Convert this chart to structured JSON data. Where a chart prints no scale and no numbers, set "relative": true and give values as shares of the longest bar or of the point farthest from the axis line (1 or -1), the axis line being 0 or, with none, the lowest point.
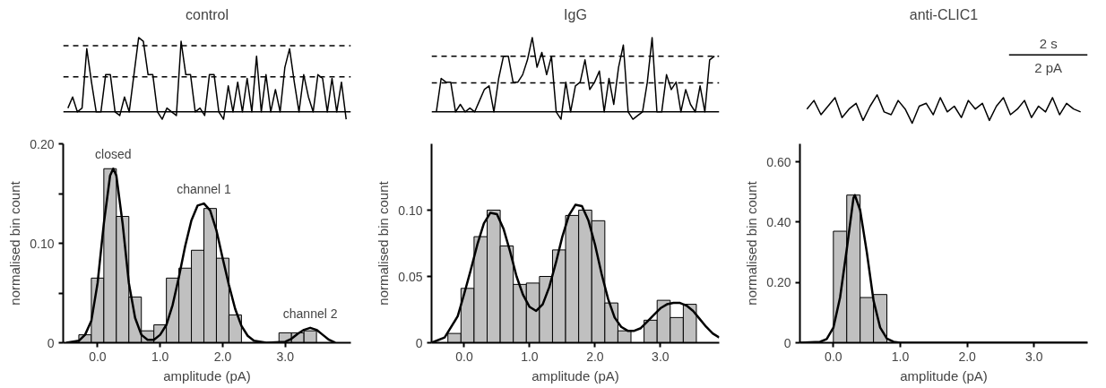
{
  "chart_data": [
    {
      "type": "line",
      "title": "control",
      "relative": true,
      "color": "#000000",
      "categories": [
        null,
        null,
        null,
        null,
        null,
        null,
        null,
        null,
        null,
        null,
        null,
        null,
        null,
        null,
        null,
        null,
        null,
        null,
        null,
        null,
        null,
        null,
        null,
        null,
        null,
        null,
        null,
        null,
        null,
        null,
        null,
        null,
        null,
        null,
        null,
        null,
        null,
        null,
        null,
        null,
        null,
        null,
        null,
        null,
        null,
        null,
        null,
        null,
        null,
        null,
        null,
        null,
        null,
        null,
        null,
        null,
        null,
        null,
        null,
        null
      ],
      "values": [
        0.05,
        0.2,
        0.0,
        0.05,
        0.85,
        0.4,
        0.0,
        0.0,
        0.5,
        0.5,
        0.0,
        -0.05,
        0.2,
        0.0,
        0.5,
        1.0,
        0.95,
        0.5,
        0.5,
        0.0,
        -0.1,
        0.05,
        0.0,
        -0.05,
        0.95,
        0.5,
        0.5,
        0.0,
        0.05,
        -0.05,
        0.5,
        0.5,
        0.0,
        -0.1,
        0.35,
        0.0,
        0.4,
        0.0,
        0.45,
        0.0,
        0.75,
        0.0,
        0.5,
        0.0,
        0.3,
        0.0,
        0.6,
        0.85,
        0.4,
        0.0,
        0.5,
        0.2,
        0.0,
        0.5,
        0.45,
        0.0,
        0.45,
        0.0,
        0.4,
        -0.1
      ],
      "ref_lines": [
        {
          "axis": "y",
          "value": 0,
          "line_style": "solid"
        },
        {
          "axis": "y",
          "value": 0.47,
          "line_style": "dashed"
        },
        {
          "axis": "y",
          "value": 0.89,
          "line_style": "dashed"
        }
      ]
    },
    {
      "type": "line",
      "title": "IgG",
      "relative": true,
      "color": "#000000",
      "categories": [
        null,
        null,
        null,
        null,
        null,
        null,
        null,
        null,
        null,
        null,
        null,
        null,
        null,
        null,
        null,
        null,
        null,
        null,
        null,
        null,
        null,
        null,
        null,
        null,
        null,
        null,
        null,
        null,
        null,
        null,
        null,
        null,
        null,
        null,
        null,
        null,
        null,
        null,
        null,
        null,
        null,
        null,
        null,
        null,
        null,
        null,
        null,
        null,
        null,
        null,
        null,
        null,
        null,
        null,
        null,
        null,
        null,
        null,
        null
      ],
      "values": [
        0.0,
        0.45,
        0.4,
        0.4,
        0.0,
        0.1,
        0.0,
        0.05,
        0.0,
        0.15,
        0.3,
        0.35,
        0.0,
        0.45,
        0.75,
        0.75,
        0.4,
        0.4,
        0.5,
        0.7,
        1.0,
        0.6,
        0.8,
        0.5,
        0.75,
        0.0,
        -0.1,
        0.4,
        0.0,
        0.35,
        0.4,
        0.7,
        0.3,
        0.4,
        0.55,
        0.0,
        0.45,
        0.1,
        0.6,
        0.9,
        0.0,
        -0.1,
        -0.05,
        0.0,
        0.4,
        1.0,
        0.0,
        0.0,
        0.5,
        0.3,
        0.4,
        0.0,
        0.3,
        0.1,
        0.0,
        0.35,
        0.0,
        0.7,
        0.75
      ],
      "ref_lines": [
        {
          "axis": "y",
          "value": 0,
          "line_style": "solid"
        },
        {
          "axis": "y",
          "value": 0.39,
          "line_style": "dashed"
        },
        {
          "axis": "y",
          "value": 0.75,
          "line_style": "dashed"
        }
      ]
    },
    {
      "type": "line",
      "title": "anti-CLIC1",
      "relative": true,
      "color": "#000000",
      "categories": [
        null,
        null,
        null,
        null,
        null,
        null,
        null,
        null,
        null,
        null,
        null,
        null,
        null,
        null,
        null,
        null,
        null,
        null,
        null,
        null,
        null,
        null,
        null,
        null,
        null,
        null,
        null,
        null,
        null,
        null,
        null,
        null,
        null,
        null,
        null,
        null,
        null,
        null,
        null,
        null
      ],
      "values": [
        0.5,
        0.8,
        0.3,
        0.6,
        0.9,
        0.2,
        0.5,
        0.7,
        0.1,
        0.6,
        1.0,
        0.4,
        0.3,
        0.8,
        0.5,
        0.0,
        0.6,
        0.7,
        0.3,
        0.9,
        0.4,
        0.6,
        0.2,
        0.8,
        0.5,
        0.7,
        0.1,
        0.6,
        0.9,
        0.3,
        0.5,
        0.8,
        0.2,
        0.6,
        0.4,
        0.9,
        0.3,
        0.7,
        0.5,
        0.4
      ],
      "annotations": [
        "2 s",
        "2 pA"
      ]
    },
    {
      "type": "histogram",
      "xlabel": "amplitude (pA)",
      "ylabel": "normalised bin count",
      "xlim": [
        -0.55,
        4.05
      ],
      "ylim": [
        0,
        0.2
      ],
      "xticks": [
        {
          "value": 0,
          "label": "0.0"
        },
        {
          "value": 1,
          "label": "1.0"
        },
        {
          "value": 2,
          "label": "2.0"
        },
        {
          "value": 3,
          "label": "3.0"
        }
      ],
      "yticks": [
        0,
        {
          "value": 0.05,
          "label": null
        },
        {
          "value": 0.1,
          "label": "0.10"
        },
        {
          "value": 0.15,
          "label": null
        },
        {
          "value": 0.2,
          "label": "0.20"
        }
      ],
      "series": [
        {
          "type": "histogram",
          "color": "#c0c0c0",
          "bins": [
            -0.3,
            -0.1,
            0.1,
            0.3,
            0.5,
            0.7,
            0.9,
            1.1,
            1.3,
            1.5,
            1.7,
            1.9,
            2.1,
            2.3,
            2.5,
            2.7,
            2.9,
            3.1,
            3.3,
            3.5
          ],
          "values": [
            0.008,
            0.065,
            0.175,
            0.127,
            0.046,
            0.012,
            0.018,
            0.065,
            0.075,
            0.093,
            0.135,
            0.085,
            0.028,
            0,
            0,
            0,
            0.01,
            0.01,
            0.012
          ]
        },
        {
          "type": "line",
          "color": "#000000",
          "x": [
            -0.5,
            -0.3,
            -0.2,
            -0.1,
            0.0,
            0.1,
            0.2,
            0.25,
            0.3,
            0.4,
            0.5,
            0.6,
            0.7,
            0.8,
            0.9,
            1.0,
            1.1,
            1.2,
            1.3,
            1.4,
            1.5,
            1.6,
            1.7,
            1.8,
            1.9,
            2.0,
            2.1,
            2.2,
            2.3,
            2.4,
            2.5,
            2.7,
            3.0,
            3.1,
            3.2,
            3.3,
            3.4,
            3.5,
            3.6,
            3.7,
            3.8
          ],
          "values": [
            0.0,
            0.002,
            0.008,
            0.022,
            0.06,
            0.12,
            0.168,
            0.175,
            0.168,
            0.12,
            0.06,
            0.025,
            0.008,
            0.003,
            0.003,
            0.008,
            0.018,
            0.038,
            0.066,
            0.097,
            0.123,
            0.138,
            0.14,
            0.133,
            0.113,
            0.085,
            0.058,
            0.034,
            0.017,
            0.007,
            0.002,
            0.0,
            0.001,
            0.004,
            0.009,
            0.013,
            0.015,
            0.013,
            0.008,
            0.003,
            0.0
          ]
        }
      ],
      "annotations": [
        {
          "text": "closed",
          "x": 0.25,
          "y": 0.175
        },
        {
          "text": "channel 1",
          "x": 1.7,
          "y": 0.14
        },
        {
          "text": "channel 2",
          "x": 3.4,
          "y": 0.015
        }
      ]
    },
    {
      "type": "histogram",
      "xlabel": "amplitude (pA)",
      "ylabel": "normalised bin count",
      "xlim": [
        -0.5,
        3.9
      ],
      "ylim": [
        0,
        0.15
      ],
      "xticks": [
        {
          "value": 0,
          "label": "0.0"
        },
        {
          "value": 1,
          "label": "1.0"
        },
        {
          "value": 2,
          "label": "2.0"
        },
        {
          "value": 3,
          "label": "3.0"
        }
      ],
      "yticks": [
        0,
        {
          "value": 0.05,
          "label": "0.05"
        },
        {
          "value": 0.1,
          "label": "0.10"
        }
      ],
      "series": [
        {
          "type": "histogram",
          "color": "#c0c0c0",
          "bins": [
            -0.25,
            -0.05,
            0.15,
            0.35,
            0.55,
            0.75,
            0.95,
            1.15,
            1.35,
            1.55,
            1.75,
            1.95,
            2.15,
            2.35,
            2.55,
            2.75,
            2.95,
            3.15,
            3.35,
            3.55
          ],
          "values": [
            0.007,
            0.041,
            0.08,
            0.1,
            0.073,
            0.044,
            0.045,
            0.05,
            0.07,
            0.096,
            0.1,
            0.092,
            0.03,
            0.009,
            0,
            0.017,
            0.032,
            0.019,
            0.029
          ]
        },
        {
          "type": "line",
          "color": "#000000",
          "x": [
            -0.5,
            -0.3,
            -0.1,
            0.0,
            0.1,
            0.2,
            0.3,
            0.4,
            0.5,
            0.6,
            0.7,
            0.8,
            0.9,
            1.0,
            1.1,
            1.2,
            1.3,
            1.4,
            1.5,
            1.6,
            1.7,
            1.8,
            1.9,
            2.0,
            2.1,
            2.2,
            2.3,
            2.4,
            2.5,
            2.6,
            2.7,
            2.8,
            2.9,
            3.0,
            3.1,
            3.2,
            3.3,
            3.4,
            3.5,
            3.6,
            3.7,
            3.8,
            3.9
          ],
          "values": [
            0.0,
            0.004,
            0.02,
            0.037,
            0.055,
            0.074,
            0.09,
            0.098,
            0.097,
            0.086,
            0.069,
            0.05,
            0.036,
            0.027,
            0.024,
            0.029,
            0.042,
            0.06,
            0.08,
            0.096,
            0.104,
            0.103,
            0.092,
            0.074,
            0.052,
            0.033,
            0.019,
            0.012,
            0.009,
            0.009,
            0.011,
            0.016,
            0.021,
            0.026,
            0.029,
            0.03,
            0.03,
            0.028,
            0.024,
            0.018,
            0.012,
            0.007,
            0.004
          ]
        }
      ]
    },
    {
      "type": "histogram",
      "xlabel": "amplitude (pA)",
      "ylabel": "normalised bin count",
      "xlim": [
        -0.5,
        3.8
      ],
      "ylim": [
        0,
        0.66
      ],
      "xticks": [
        {
          "value": 0,
          "label": "0.0"
        },
        {
          "value": 1,
          "label": "1.0"
        },
        {
          "value": 2,
          "label": "2.0"
        },
        {
          "value": 3,
          "label": "3.0"
        }
      ],
      "yticks": [
        0,
        {
          "value": 0.2,
          "label": "0.20"
        },
        {
          "value": 0.4,
          "label": "0.40"
        },
        {
          "value": 0.6,
          "label": "0.60"
        }
      ],
      "series": [
        {
          "type": "histogram",
          "color": "#c0c0c0",
          "bins": [
            0.0,
            0.2,
            0.4,
            0.6,
            0.8
          ],
          "values": [
            0.37,
            0.49,
            0.15,
            0.16
          ]
        },
        {
          "type": "line",
          "color": "#000000",
          "x": [
            -0.5,
            -0.2,
            -0.1,
            0.0,
            0.1,
            0.2,
            0.3,
            0.32,
            0.4,
            0.5,
            0.6,
            0.7,
            0.8,
            0.9,
            1.0,
            3.8
          ],
          "values": [
            0.0,
            0.003,
            0.012,
            0.05,
            0.15,
            0.31,
            0.48,
            0.49,
            0.44,
            0.3,
            0.14,
            0.05,
            0.014,
            0.003,
            0.0,
            0.0
          ]
        }
      ]
    }
  ]
}
